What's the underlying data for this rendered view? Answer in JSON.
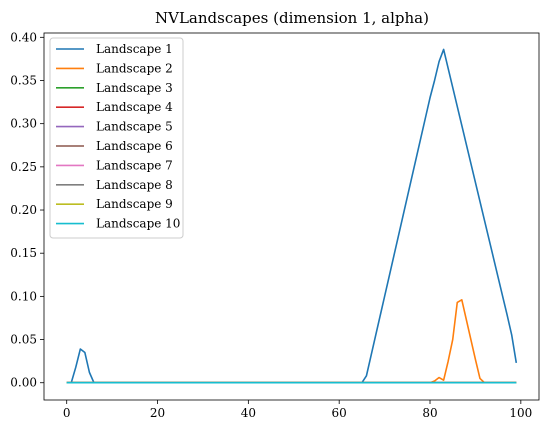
{
  "chart_data": {
    "type": "line",
    "title": "NVLandscapes (dimension 1, alpha)",
    "xlabel": "",
    "ylabel": "",
    "xlim": [
      -5,
      104
    ],
    "ylim": [
      -0.02,
      0.405
    ],
    "xticks": [
      0,
      20,
      40,
      60,
      80,
      100
    ],
    "yticks": [
      0.0,
      0.05,
      0.1,
      0.15,
      0.2,
      0.25,
      0.3,
      0.35,
      0.4
    ],
    "ytick_labels": [
      "0.00",
      "0.05",
      "0.10",
      "0.15",
      "0.20",
      "0.25",
      "0.30",
      "0.35",
      "0.40"
    ],
    "grid": false,
    "legend_position": "top-left",
    "series": [
      {
        "name": "Landscape 1",
        "color": "#1f77b4",
        "points": [
          [
            0,
            0
          ],
          [
            1,
            0
          ],
          [
            2,
            0.018
          ],
          [
            3,
            0.039
          ],
          [
            4,
            0.035
          ],
          [
            5,
            0.012
          ],
          [
            6,
            0
          ],
          [
            12,
            0
          ],
          [
            64,
            0
          ],
          [
            65,
            0
          ],
          [
            66,
            0.008
          ],
          [
            67,
            0.031
          ],
          [
            68,
            0.054
          ],
          [
            69,
            0.077
          ],
          [
            70,
            0.1
          ],
          [
            71,
            0.123
          ],
          [
            72,
            0.146
          ],
          [
            73,
            0.169
          ],
          [
            74,
            0.192
          ],
          [
            75,
            0.215
          ],
          [
            76,
            0.238
          ],
          [
            77,
            0.261
          ],
          [
            78,
            0.284
          ],
          [
            79,
            0.307
          ],
          [
            80,
            0.33
          ],
          [
            81,
            0.35
          ],
          [
            82,
            0.372
          ],
          [
            83,
            0.386
          ],
          [
            84,
            0.364
          ],
          [
            85,
            0.342
          ],
          [
            86,
            0.32
          ],
          [
            87,
            0.298
          ],
          [
            88,
            0.276
          ],
          [
            89,
            0.254
          ],
          [
            90,
            0.232
          ],
          [
            91,
            0.21
          ],
          [
            92,
            0.188
          ],
          [
            93,
            0.166
          ],
          [
            94,
            0.144
          ],
          [
            95,
            0.122
          ],
          [
            96,
            0.1
          ],
          [
            97,
            0.078
          ],
          [
            98,
            0.055
          ],
          [
            99,
            0.023
          ]
        ]
      },
      {
        "name": "Landscape 2",
        "color": "#ff7f0e",
        "points": [
          [
            0,
            0
          ],
          [
            80,
            0
          ],
          [
            81,
            0.002
          ],
          [
            82,
            0.006
          ],
          [
            83,
            0.003
          ],
          [
            84,
            0.025
          ],
          [
            85,
            0.05
          ],
          [
            86,
            0.093
          ],
          [
            87,
            0.096
          ],
          [
            88,
            0.073
          ],
          [
            89,
            0.05
          ],
          [
            90,
            0.027
          ],
          [
            91,
            0.005
          ],
          [
            92,
            0
          ],
          [
            99,
            0
          ]
        ]
      },
      {
        "name": "Landscape 3",
        "color": "#2ca02c",
        "points": [
          [
            0,
            0
          ],
          [
            99,
            0
          ]
        ]
      },
      {
        "name": "Landscape 4",
        "color": "#d62728",
        "points": [
          [
            0,
            0
          ],
          [
            99,
            0
          ]
        ]
      },
      {
        "name": "Landscape 5",
        "color": "#9467bd",
        "points": [
          [
            0,
            0
          ],
          [
            99,
            0
          ]
        ]
      },
      {
        "name": "Landscape 6",
        "color": "#8c564b",
        "points": [
          [
            0,
            0
          ],
          [
            99,
            0
          ]
        ]
      },
      {
        "name": "Landscape 7",
        "color": "#e377c2",
        "points": [
          [
            0,
            0
          ],
          [
            99,
            0
          ]
        ]
      },
      {
        "name": "Landscape 8",
        "color": "#7f7f7f",
        "points": [
          [
            0,
            0
          ],
          [
            99,
            0
          ]
        ]
      },
      {
        "name": "Landscape 9",
        "color": "#bcbd22",
        "points": [
          [
            0,
            0
          ],
          [
            99,
            0
          ]
        ]
      },
      {
        "name": "Landscape 10",
        "color": "#17becf",
        "points": [
          [
            0,
            0
          ],
          [
            99,
            0
          ]
        ]
      }
    ]
  }
}
